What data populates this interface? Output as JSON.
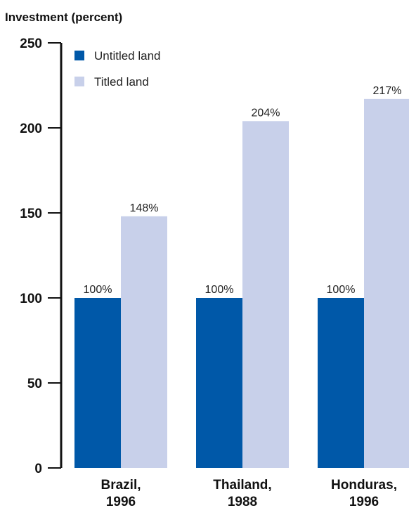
{
  "chart_data": {
    "type": "bar",
    "ylabel": "Investment (percent)",
    "ylim": [
      0,
      250
    ],
    "yticks": [
      0,
      50,
      100,
      150,
      200,
      250
    ],
    "grid": false,
    "legend_position": "top-left",
    "categories": [
      [
        "Brazil,",
        "1996"
      ],
      [
        "Thailand,",
        "1988"
      ],
      [
        "Honduras,",
        "1996"
      ]
    ],
    "series": [
      {
        "name": "Untitled land",
        "color": "#0058a8",
        "values": [
          100,
          100,
          100
        ],
        "labels": [
          "100%",
          "100%",
          "100%"
        ]
      },
      {
        "name": "Titled land",
        "color": "#c8d0ea",
        "values": [
          148,
          204,
          217
        ],
        "labels": [
          "148%",
          "204%",
          "217%"
        ]
      }
    ]
  }
}
